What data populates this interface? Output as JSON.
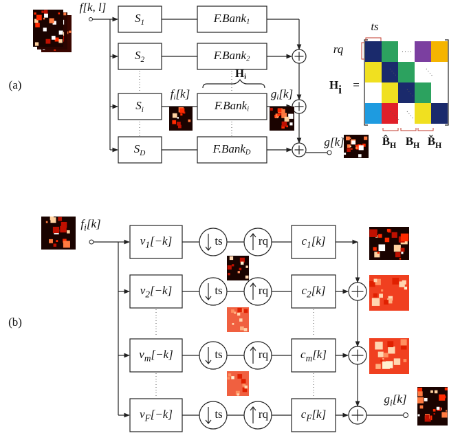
{
  "panel_a": {
    "label": "(a)",
    "input": "f[k, l]",
    "branches": [
      {
        "s": {
          "base": "S",
          "sub": "1"
        },
        "bank": {
          "base": "F.Bank",
          "sub": "1"
        }
      },
      {
        "s": {
          "base": "S",
          "sub": "2"
        },
        "bank": {
          "base": "F.Bank",
          "sub": "2"
        }
      },
      {
        "s": {
          "base": "S",
          "sub": "i"
        },
        "bank": {
          "base": "F.Bank",
          "sub": "i"
        }
      },
      {
        "s": {
          "base": "S",
          "sub": "D"
        },
        "bank": {
          "base": "F.Bank",
          "sub": "D"
        }
      }
    ],
    "operator": {
      "base": "H",
      "sub": "i"
    },
    "branch_input": {
      "base": "f",
      "sub": "i",
      "rest": "[k]"
    },
    "branch_output": {
      "base": "g",
      "sub": "i",
      "rest": "[k]"
    },
    "output": "g[k]",
    "matrix": {
      "name": {
        "base": "H",
        "sub": "i"
      },
      "equals": "=",
      "ts": "ts",
      "rq": "rq",
      "blocks": [
        {
          "base": "B̂",
          "sub": "H"
        },
        {
          "base": "B",
          "sub": "H"
        },
        {
          "base": "B̆",
          "sub": "H"
        }
      ]
    }
  },
  "panel_b": {
    "label": "(b)",
    "input": {
      "base": "f",
      "sub": "i",
      "rest": "[k]"
    },
    "branches": [
      {
        "v": {
          "base": "v",
          "sub": "1",
          "rest": "[−k]"
        },
        "down": "ts",
        "up": "rq",
        "c": {
          "base": "c",
          "sub": "1",
          "rest": "[k]"
        }
      },
      {
        "v": {
          "base": "v",
          "sub": "2",
          "rest": "[−k]"
        },
        "down": "ts",
        "up": "rq",
        "c": {
          "base": "c",
          "sub": "2",
          "rest": "[k]"
        }
      },
      {
        "v": {
          "base": "v",
          "sub": "m",
          "rest": "[−k]"
        },
        "down": "ts",
        "up": "rq",
        "c": {
          "base": "c",
          "sub": "m",
          "rest": "[k]"
        }
      },
      {
        "v": {
          "base": "v",
          "sub": "F",
          "rest": "[−k]"
        },
        "down": "ts",
        "up": "rq",
        "c": {
          "base": "c",
          "sub": "F",
          "rest": "[k]"
        }
      }
    ],
    "output": {
      "base": "g",
      "sub": "i",
      "rest": "[k]"
    }
  }
}
